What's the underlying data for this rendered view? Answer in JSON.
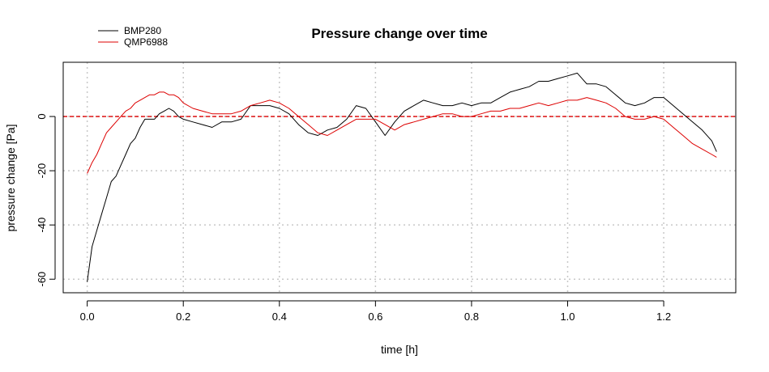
{
  "chart_data": {
    "type": "line",
    "title": "Pressure change over time",
    "xlabel": "time [h]",
    "ylabel": "pressure change [Pa]",
    "xlim": [
      -0.05,
      1.35
    ],
    "ylim": [
      -65,
      20
    ],
    "xticks": [
      0.0,
      0.2,
      0.4,
      0.6,
      0.8,
      1.0,
      1.2
    ],
    "xtick_labels": [
      "0.0",
      "0.2",
      "0.4",
      "0.6",
      "0.8",
      "1.0",
      "1.2"
    ],
    "yticks": [
      -60,
      -40,
      -20,
      0
    ],
    "ytick_labels": [
      "-60",
      "-40",
      "-20",
      "0"
    ],
    "grid": true,
    "legend_position": "top-left",
    "reference_line": {
      "y": 0,
      "color": "#dd0000",
      "style": "dashed"
    },
    "series": [
      {
        "name": "BMP280",
        "color": "#000000",
        "x": [
          0.0,
          0.01,
          0.02,
          0.03,
          0.04,
          0.05,
          0.06,
          0.07,
          0.08,
          0.09,
          0.1,
          0.11,
          0.12,
          0.13,
          0.14,
          0.15,
          0.16,
          0.17,
          0.18,
          0.19,
          0.2,
          0.22,
          0.24,
          0.26,
          0.28,
          0.3,
          0.32,
          0.34,
          0.36,
          0.38,
          0.4,
          0.42,
          0.44,
          0.46,
          0.48,
          0.5,
          0.52,
          0.54,
          0.56,
          0.58,
          0.6,
          0.62,
          0.64,
          0.66,
          0.68,
          0.7,
          0.72,
          0.74,
          0.76,
          0.78,
          0.8,
          0.82,
          0.84,
          0.86,
          0.88,
          0.9,
          0.92,
          0.94,
          0.96,
          0.98,
          1.0,
          1.02,
          1.04,
          1.06,
          1.08,
          1.1,
          1.12,
          1.14,
          1.16,
          1.18,
          1.2,
          1.22,
          1.24,
          1.26,
          1.28,
          1.3,
          1.31
        ],
        "y": [
          -61,
          -48,
          -42,
          -36,
          -30,
          -24,
          -22,
          -18,
          -14,
          -10,
          -8,
          -4,
          -1,
          -1,
          -1,
          1,
          2,
          3,
          2,
          0,
          -1,
          -2,
          -3,
          -4,
          -2,
          -2,
          -1,
          4,
          4,
          4,
          3,
          1,
          -3,
          -6,
          -7,
          -5,
          -4,
          -1,
          4,
          3,
          -2,
          -7,
          -2,
          2,
          4,
          6,
          5,
          4,
          4,
          5,
          4,
          5,
          5,
          7,
          9,
          10,
          11,
          13,
          13,
          14,
          15,
          16,
          12,
          12,
          11,
          8,
          5,
          4,
          5,
          7,
          7,
          4,
          1,
          -2,
          -5,
          -9,
          -13
        ]
      },
      {
        "name": "QMP6988",
        "color": "#dd0000",
        "x": [
          0.0,
          0.01,
          0.02,
          0.03,
          0.04,
          0.05,
          0.06,
          0.07,
          0.08,
          0.09,
          0.1,
          0.11,
          0.12,
          0.13,
          0.14,
          0.15,
          0.16,
          0.17,
          0.18,
          0.19,
          0.2,
          0.22,
          0.24,
          0.26,
          0.28,
          0.3,
          0.32,
          0.34,
          0.36,
          0.38,
          0.4,
          0.42,
          0.44,
          0.46,
          0.48,
          0.5,
          0.52,
          0.54,
          0.56,
          0.58,
          0.6,
          0.62,
          0.64,
          0.66,
          0.68,
          0.7,
          0.72,
          0.74,
          0.76,
          0.78,
          0.8,
          0.82,
          0.84,
          0.86,
          0.88,
          0.9,
          0.92,
          0.94,
          0.96,
          0.98,
          1.0,
          1.02,
          1.04,
          1.06,
          1.08,
          1.1,
          1.12,
          1.14,
          1.16,
          1.18,
          1.2,
          1.22,
          1.24,
          1.26,
          1.28,
          1.3,
          1.31
        ],
        "y": [
          -21,
          -17,
          -14,
          -10,
          -6,
          -4,
          -2,
          0,
          2,
          3,
          5,
          6,
          7,
          8,
          8,
          9,
          9,
          8,
          8,
          7,
          5,
          3,
          2,
          1,
          1,
          1,
          2,
          4,
          5,
          6,
          5,
          3,
          0,
          -3,
          -6,
          -7,
          -5,
          -3,
          -1,
          -1,
          -1,
          -3,
          -5,
          -3,
          -2,
          -1,
          0,
          1,
          1,
          0,
          0,
          1,
          2,
          2,
          3,
          3,
          4,
          5,
          4,
          5,
          6,
          6,
          7,
          6,
          5,
          3,
          0,
          -1,
          -1,
          0,
          -1,
          -4,
          -7,
          -10,
          -12,
          -14,
          -15
        ]
      }
    ]
  }
}
